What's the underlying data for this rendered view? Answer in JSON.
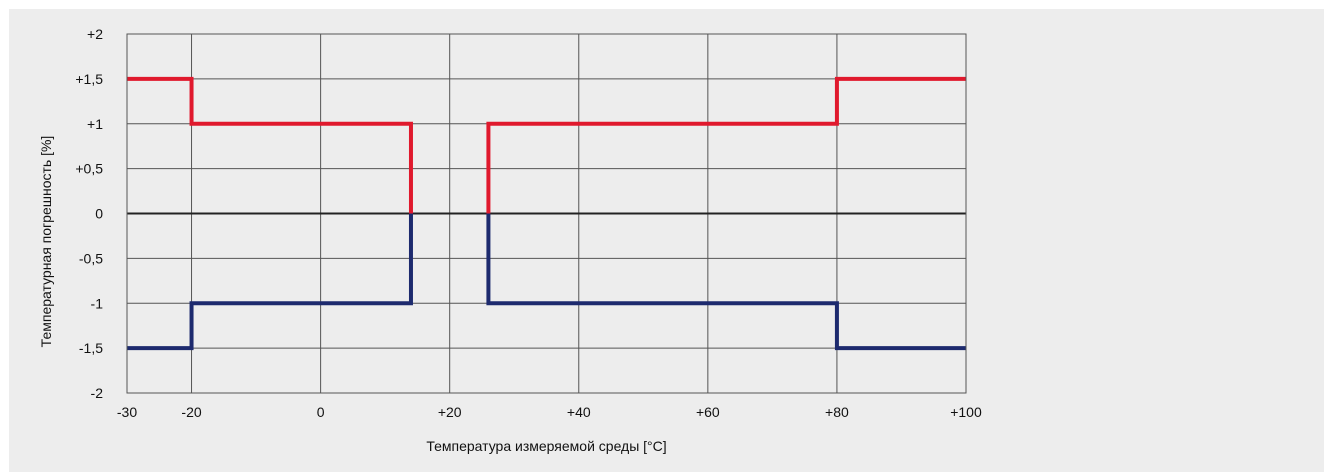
{
  "chart_data": {
    "type": "line",
    "title": "",
    "xlabel": "Температура измеряемой среды [°C]",
    "ylabel": "Температурная погрешность [%]",
    "xlim": [
      -30,
      100
    ],
    "ylim": [
      -2,
      2
    ],
    "x_ticks": [
      {
        "value": -30,
        "label": "-30"
      },
      {
        "value": -20,
        "label": "-20"
      },
      {
        "value": 0,
        "label": "0"
      },
      {
        "value": 20,
        "label": "+20"
      },
      {
        "value": 40,
        "label": "+40"
      },
      {
        "value": 60,
        "label": "+60"
      },
      {
        "value": 80,
        "label": "+80"
      },
      {
        "value": 100,
        "label": "+100"
      }
    ],
    "y_ticks": [
      {
        "value": 2,
        "label": "+2"
      },
      {
        "value": 1.5,
        "label": "+1,5"
      },
      {
        "value": 1,
        "label": "+1"
      },
      {
        "value": 0.5,
        "label": "+0,5"
      },
      {
        "value": 0,
        "label": "0"
      },
      {
        "value": -0.5,
        "label": "-0,5"
      },
      {
        "value": -1,
        "label": "-1"
      },
      {
        "value": -1.5,
        "label": "-1,5"
      },
      {
        "value": -2,
        "label": "-2"
      }
    ],
    "grid": true,
    "series": [
      {
        "color": "#e0192d",
        "points": [
          [
            -30,
            1.5
          ],
          [
            -20,
            1.5
          ],
          [
            -20,
            1
          ],
          [
            14,
            1
          ],
          [
            14,
            0
          ]
        ]
      },
      {
        "color": "#e0192d",
        "points": [
          [
            26,
            0
          ],
          [
            26,
            1
          ],
          [
            80,
            1
          ],
          [
            80,
            1.5
          ],
          [
            100,
            1.5
          ]
        ]
      },
      {
        "color": "#1d2a6e",
        "points": [
          [
            -30,
            -1.5
          ],
          [
            -20,
            -1.5
          ],
          [
            -20,
            -1
          ],
          [
            14,
            -1
          ],
          [
            14,
            0
          ]
        ]
      },
      {
        "color": "#1d2a6e",
        "points": [
          [
            26,
            0
          ],
          [
            26,
            -1
          ],
          [
            80,
            -1
          ],
          [
            80,
            -1.5
          ],
          [
            100,
            -1.5
          ]
        ]
      }
    ]
  }
}
